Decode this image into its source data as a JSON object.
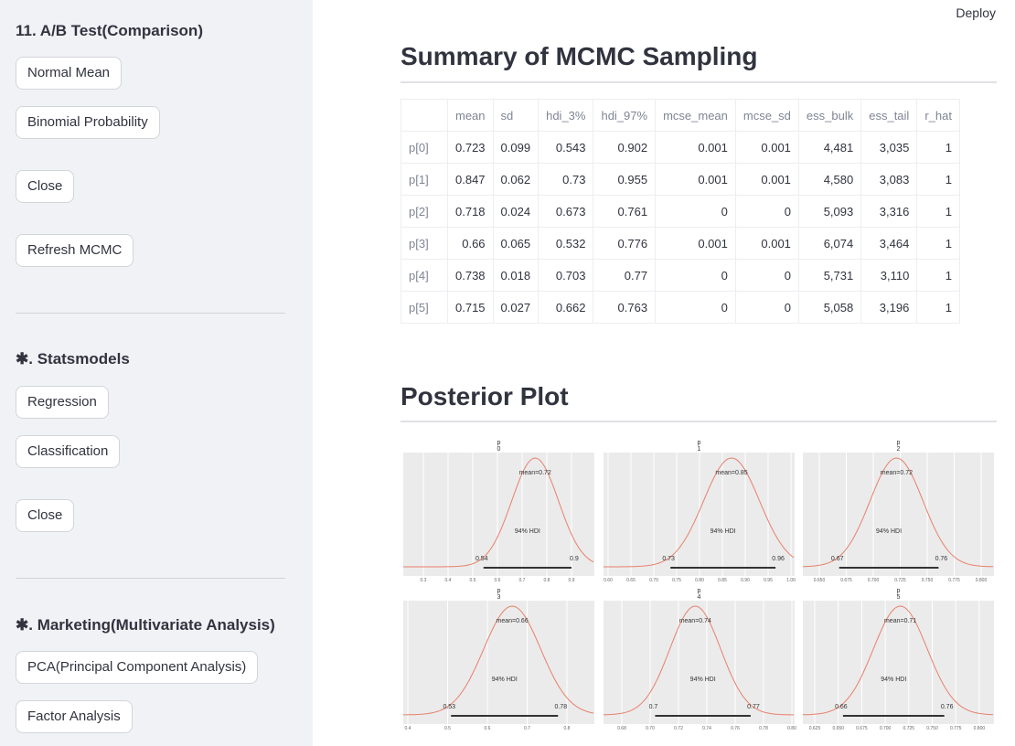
{
  "header": {
    "deploy": "Deploy"
  },
  "sidebar": {
    "sections": [
      {
        "title": "11. A/B Test(Comparison)",
        "buttons": [
          "Normal Mean",
          "Binomial Probability",
          "Close",
          "Refresh MCMC"
        ]
      },
      {
        "title": "✱. Statsmodels",
        "buttons": [
          "Regression",
          "Classification",
          "Close"
        ]
      },
      {
        "title": "✱. Marketing(Multivariate Analysis)",
        "buttons": [
          "PCA(Principal Component Analysis)",
          "Factor Analysis"
        ]
      }
    ]
  },
  "main": {
    "summary_title": "Summary of MCMC Sampling",
    "table": {
      "columns": [
        "mean",
        "sd",
        "hdi_3%",
        "hdi_97%",
        "mcse_mean",
        "mcse_sd",
        "ess_bulk",
        "ess_tail",
        "r_hat"
      ],
      "rows": [
        {
          "label": "p[0]",
          "cells": [
            "0.723",
            "0.099",
            "0.543",
            "0.902",
            "0.001",
            "0.001",
            "4,481",
            "3,035",
            "1"
          ]
        },
        {
          "label": "p[1]",
          "cells": [
            "0.847",
            "0.062",
            "0.73",
            "0.955",
            "0.001",
            "0.001",
            "4,580",
            "3,083",
            "1"
          ]
        },
        {
          "label": "p[2]",
          "cells": [
            "0.718",
            "0.024",
            "0.673",
            "0.761",
            "0",
            "0",
            "5,093",
            "3,316",
            "1"
          ]
        },
        {
          "label": "p[3]",
          "cells": [
            "0.66",
            "0.065",
            "0.532",
            "0.776",
            "0.001",
            "0.001",
            "6,074",
            "3,464",
            "1"
          ]
        },
        {
          "label": "p[4]",
          "cells": [
            "0.738",
            "0.018",
            "0.703",
            "0.77",
            "0",
            "0",
            "5,731",
            "3,110",
            "1"
          ]
        },
        {
          "label": "p[5]",
          "cells": [
            "0.715",
            "0.027",
            "0.662",
            "0.763",
            "0",
            "0",
            "5,058",
            "3,196",
            "1"
          ]
        }
      ]
    },
    "posterior_title": "Posterior Plot",
    "panels": [
      {
        "title": "p",
        "index": "0",
        "mean_label": "mean=0.72",
        "hdi_label": "94% HDI",
        "hdi_low": "0.54",
        "hdi_high": "0.9",
        "xticks": [
          "0.3",
          "0.4",
          "0.5",
          "0.6",
          "0.7",
          "0.8",
          "0.9"
        ]
      },
      {
        "title": "p",
        "index": "1",
        "mean_label": "mean=0.85",
        "hdi_label": "94% HDI",
        "hdi_low": "0.73",
        "hdi_high": "0.96",
        "xticks": [
          "0.60",
          "0.65",
          "0.70",
          "0.75",
          "0.80",
          "0.85",
          "0.90",
          "0.95",
          "1.00"
        ]
      },
      {
        "title": "p",
        "index": "2",
        "mean_label": "mean=0.72",
        "hdi_label": "94% HDI",
        "hdi_low": "0.67",
        "hdi_high": "0.76",
        "xticks": [
          "0.650",
          "0.675",
          "0.700",
          "0.725",
          "0.750",
          "0.775",
          "0.800"
        ]
      },
      {
        "title": "p",
        "index": "3",
        "mean_label": "mean=0.66",
        "hdi_label": "94% HDI",
        "hdi_low": "0.53",
        "hdi_high": "0.78",
        "xticks": [
          "0.4",
          "0.5",
          "0.6",
          "0.7",
          "0.8"
        ]
      },
      {
        "title": "p",
        "index": "4",
        "mean_label": "mean=0.74",
        "hdi_label": "94% HDI",
        "hdi_low": "0.7",
        "hdi_high": "0.77",
        "xticks": [
          "0.68",
          "0.70",
          "0.72",
          "0.74",
          "0.76",
          "0.78",
          "0.80"
        ]
      },
      {
        "title": "p",
        "index": "5",
        "mean_label": "mean=0.71",
        "hdi_label": "94% HDI",
        "hdi_low": "0.66",
        "hdi_high": "0.76",
        "xticks": [
          "0.625",
          "0.650",
          "0.675",
          "0.700",
          "0.725",
          "0.750",
          "0.775",
          "0.800"
        ]
      }
    ]
  }
}
